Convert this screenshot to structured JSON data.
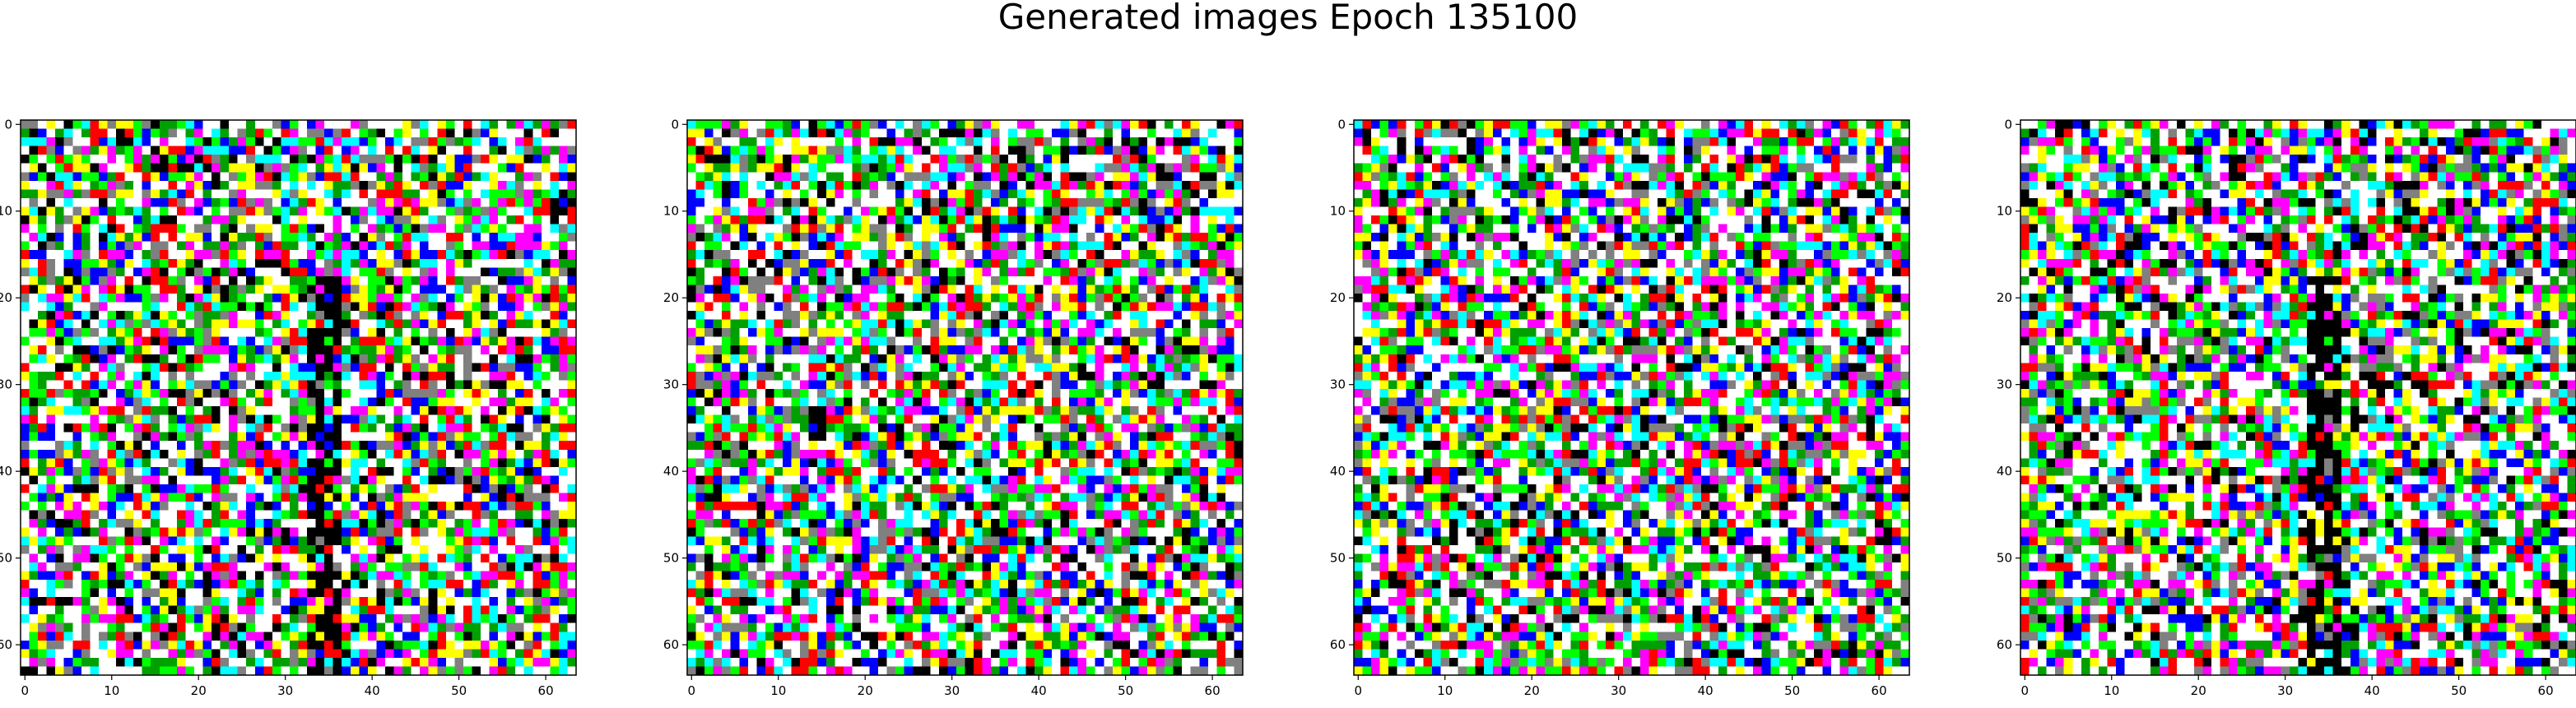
{
  "suptitle": "Generated images Epoch 135100",
  "chart_data": {
    "type": "heatmap",
    "title": "Generated images Epoch 135100",
    "panels": 4,
    "grid_size": [
      64,
      64
    ],
    "xlim": [
      -0.5,
      63.5
    ],
    "ylim": [
      63.5,
      -0.5
    ],
    "x_ticks": [
      0,
      10,
      20,
      30,
      40,
      50,
      60
    ],
    "y_ticks": [
      0,
      10,
      20,
      30,
      40,
      50,
      60
    ],
    "x_tick_labels": [
      "0",
      "10",
      "20",
      "30",
      "40",
      "50",
      "60"
    ],
    "y_tick_labels": [
      "0",
      "10",
      "20",
      "30",
      "40",
      "50",
      "60"
    ],
    "palette": [
      "#ff0000",
      "#00ff00",
      "#0000ff",
      "#ffff00",
      "#ff00ff",
      "#00ffff",
      "#ffffff",
      "#000000",
      "#808080",
      "#00a000"
    ],
    "dark_streak_columns": [
      [
        33,
        36
      ],
      null,
      null,
      [
        33,
        36
      ]
    ]
  }
}
